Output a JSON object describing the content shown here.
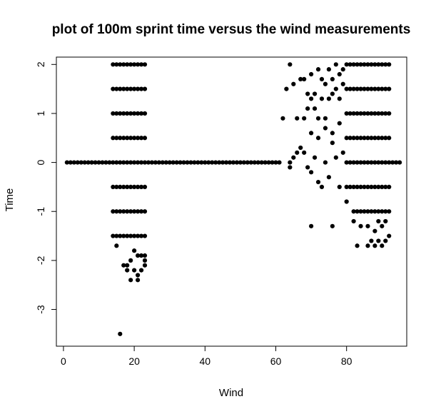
{
  "chart_data": {
    "type": "scatter",
    "title": "plot of 100m sprint time versus the wind measurements",
    "xlabel": "Wind",
    "ylabel": "Time",
    "xlim": [
      -2,
      97
    ],
    "ylim": [
      -3.75,
      2.15
    ],
    "x_ticks": [
      0,
      20,
      40,
      60,
      80
    ],
    "y_ticks": [
      -3,
      -2,
      -1,
      0,
      1,
      2
    ],
    "grid": false,
    "legend": "none",
    "marker_color": "#000000",
    "points": [
      [
        1,
        0
      ],
      [
        2,
        0
      ],
      [
        3,
        0
      ],
      [
        4,
        0
      ],
      [
        5,
        0
      ],
      [
        6,
        0
      ],
      [
        7,
        0
      ],
      [
        8,
        0
      ],
      [
        9,
        0
      ],
      [
        10,
        0
      ],
      [
        11,
        0
      ],
      [
        12,
        0
      ],
      [
        13,
        0
      ],
      [
        24,
        0
      ],
      [
        25,
        0
      ],
      [
        26,
        0
      ],
      [
        27,
        0
      ],
      [
        28,
        0
      ],
      [
        29,
        0
      ],
      [
        30,
        0
      ],
      [
        31,
        0
      ],
      [
        32,
        0
      ],
      [
        33,
        0
      ],
      [
        34,
        0
      ],
      [
        35,
        0
      ],
      [
        36,
        0
      ],
      [
        37,
        0
      ],
      [
        38,
        0
      ],
      [
        39,
        0
      ],
      [
        40,
        0
      ],
      [
        41,
        0
      ],
      [
        42,
        0
      ],
      [
        43,
        0
      ],
      [
        44,
        0
      ],
      [
        45,
        0
      ],
      [
        46,
        0
      ],
      [
        47,
        0
      ],
      [
        48,
        0
      ],
      [
        49,
        0
      ],
      [
        50,
        0
      ],
      [
        51,
        0
      ],
      [
        52,
        0
      ],
      [
        53,
        0
      ],
      [
        54,
        0
      ],
      [
        55,
        0
      ],
      [
        56,
        0
      ],
      [
        57,
        0
      ],
      [
        58,
        0
      ],
      [
        59,
        0
      ],
      [
        60,
        0
      ],
      [
        61,
        0
      ],
      [
        93,
        0
      ],
      [
        94,
        0
      ],
      [
        95,
        0
      ],
      [
        14,
        2
      ],
      [
        14,
        1.5
      ],
      [
        14,
        1
      ],
      [
        14,
        0.5
      ],
      [
        14,
        0
      ],
      [
        14,
        -0.5
      ],
      [
        14,
        -1
      ],
      [
        14,
        -1.5
      ],
      [
        15,
        2
      ],
      [
        15,
        1.5
      ],
      [
        15,
        1
      ],
      [
        15,
        0.5
      ],
      [
        15,
        0
      ],
      [
        15,
        -0.5
      ],
      [
        15,
        -1
      ],
      [
        15,
        -1.5
      ],
      [
        15,
        -1.7
      ],
      [
        16,
        2
      ],
      [
        16,
        1.5
      ],
      [
        16,
        1
      ],
      [
        16,
        0.5
      ],
      [
        16,
        0
      ],
      [
        16,
        -0.5
      ],
      [
        16,
        -1
      ],
      [
        16,
        -1.5
      ],
      [
        17,
        2
      ],
      [
        17,
        1.5
      ],
      [
        17,
        1
      ],
      [
        17,
        0.5
      ],
      [
        17,
        0
      ],
      [
        17,
        -0.5
      ],
      [
        17,
        -1
      ],
      [
        17,
        -1.5
      ],
      [
        17,
        -2.1
      ],
      [
        18,
        2
      ],
      [
        18,
        1.5
      ],
      [
        18,
        1
      ],
      [
        18,
        0.5
      ],
      [
        18,
        0
      ],
      [
        18,
        -0.5
      ],
      [
        18,
        -1
      ],
      [
        18,
        -1.5
      ],
      [
        18,
        -2.1
      ],
      [
        18,
        -2.2
      ],
      [
        19,
        2
      ],
      [
        19,
        1.5
      ],
      [
        19,
        1
      ],
      [
        19,
        0.5
      ],
      [
        19,
        0
      ],
      [
        19,
        -0.5
      ],
      [
        19,
        -1
      ],
      [
        19,
        -1.5
      ],
      [
        19,
        -2
      ],
      [
        19,
        -2.4
      ],
      [
        20,
        2
      ],
      [
        20,
        1.5
      ],
      [
        20,
        1
      ],
      [
        20,
        0.5
      ],
      [
        20,
        0
      ],
      [
        20,
        -0.5
      ],
      [
        20,
        -1
      ],
      [
        20,
        -1.5
      ],
      [
        20,
        -1.8
      ],
      [
        20,
        -2.2
      ],
      [
        21,
        2
      ],
      [
        21,
        1.5
      ],
      [
        21,
        1
      ],
      [
        21,
        0.5
      ],
      [
        21,
        0
      ],
      [
        21,
        -0.5
      ],
      [
        21,
        -1
      ],
      [
        21,
        -1.5
      ],
      [
        21,
        -1.9
      ],
      [
        21,
        -2.3
      ],
      [
        21,
        -2.4
      ],
      [
        22,
        2
      ],
      [
        22,
        1.5
      ],
      [
        22,
        1
      ],
      [
        22,
        0.5
      ],
      [
        22,
        0
      ],
      [
        22,
        -0.5
      ],
      [
        22,
        -1
      ],
      [
        22,
        -1.5
      ],
      [
        22,
        -1.9
      ],
      [
        22,
        -2.2
      ],
      [
        23,
        2
      ],
      [
        23,
        1.5
      ],
      [
        23,
        1
      ],
      [
        23,
        0.5
      ],
      [
        23,
        0
      ],
      [
        23,
        -0.5
      ],
      [
        23,
        -1
      ],
      [
        23,
        -1.5
      ],
      [
        23,
        -1.9
      ],
      [
        23,
        -2
      ],
      [
        23,
        -2.1
      ],
      [
        16,
        -3.5
      ],
      [
        62,
        0.9
      ],
      [
        63,
        1.5
      ],
      [
        64,
        2
      ],
      [
        65,
        1.6
      ],
      [
        66,
        0.9
      ],
      [
        67,
        1.7
      ],
      [
        68,
        1.7
      ],
      [
        68,
        0.9
      ],
      [
        69,
        1.4
      ],
      [
        69,
        1.1
      ],
      [
        70,
        1.8
      ],
      [
        70,
        1.3
      ],
      [
        71,
        1.4
      ],
      [
        71,
        1.1
      ],
      [
        72,
        1.9
      ],
      [
        72,
        0.9
      ],
      [
        73,
        1.7
      ],
      [
        73,
        1.3
      ],
      [
        74,
        1.6
      ],
      [
        74,
        0.9
      ],
      [
        75,
        1.9
      ],
      [
        75,
        1.3
      ],
      [
        76,
        1.7
      ],
      [
        76,
        1.4
      ],
      [
        77,
        2
      ],
      [
        77,
        1.5
      ],
      [
        78,
        1.8
      ],
      [
        78,
        1.3
      ],
      [
        79,
        1.9
      ],
      [
        79,
        1.6
      ],
      [
        64,
        0
      ],
      [
        64,
        -0.1
      ],
      [
        65,
        0.1
      ],
      [
        66,
        0.2
      ],
      [
        67,
        0.3
      ],
      [
        68,
        0.2
      ],
      [
        69,
        -0.1
      ],
      [
        70,
        -0.2
      ],
      [
        71,
        0.1
      ],
      [
        72,
        -0.4
      ],
      [
        73,
        -0.5
      ],
      [
        74,
        0
      ],
      [
        75,
        -0.3
      ],
      [
        76,
        0.6
      ],
      [
        77,
        0.1
      ],
      [
        78,
        -0.5
      ],
      [
        79,
        0.2
      ],
      [
        70,
        0.6
      ],
      [
        72,
        0.5
      ],
      [
        74,
        0.7
      ],
      [
        76,
        0.4
      ],
      [
        78,
        0.8
      ],
      [
        70,
        -1.3
      ],
      [
        76,
        -1.3
      ],
      [
        80,
        -0.8
      ],
      [
        82,
        -1.2
      ],
      [
        83,
        -1.7
      ],
      [
        80,
        2
      ],
      [
        80,
        1.5
      ],
      [
        80,
        1
      ],
      [
        80,
        0.5
      ],
      [
        80,
        0
      ],
      [
        80,
        -0.5
      ],
      [
        81,
        2
      ],
      [
        81,
        1.5
      ],
      [
        81,
        1
      ],
      [
        81,
        0.5
      ],
      [
        81,
        0
      ],
      [
        81,
        -0.5
      ],
      [
        82,
        2
      ],
      [
        82,
        1.5
      ],
      [
        82,
        1
      ],
      [
        82,
        0.5
      ],
      [
        82,
        0
      ],
      [
        82,
        -0.5
      ],
      [
        82,
        -1
      ],
      [
        83,
        2
      ],
      [
        83,
        1.5
      ],
      [
        83,
        1
      ],
      [
        83,
        0.5
      ],
      [
        83,
        0
      ],
      [
        83,
        -0.5
      ],
      [
        83,
        -1
      ],
      [
        84,
        2
      ],
      [
        84,
        1.5
      ],
      [
        84,
        1
      ],
      [
        84,
        0.5
      ],
      [
        84,
        0
      ],
      [
        84,
        -0.5
      ],
      [
        84,
        -1
      ],
      [
        84,
        -1.3
      ],
      [
        85,
        2
      ],
      [
        85,
        1.5
      ],
      [
        85,
        1
      ],
      [
        85,
        0.5
      ],
      [
        85,
        0
      ],
      [
        85,
        -0.5
      ],
      [
        85,
        -1
      ],
      [
        86,
        2
      ],
      [
        86,
        1.5
      ],
      [
        86,
        1
      ],
      [
        86,
        0.5
      ],
      [
        86,
        0
      ],
      [
        86,
        -0.5
      ],
      [
        86,
        -1
      ],
      [
        86,
        -1.3
      ],
      [
        86,
        -1.7
      ],
      [
        87,
        2
      ],
      [
        87,
        1.5
      ],
      [
        87,
        1
      ],
      [
        87,
        0.5
      ],
      [
        87,
        0
      ],
      [
        87,
        -0.5
      ],
      [
        87,
        -1
      ],
      [
        87,
        -1.6
      ],
      [
        88,
        2
      ],
      [
        88,
        1.5
      ],
      [
        88,
        1
      ],
      [
        88,
        0.5
      ],
      [
        88,
        0
      ],
      [
        88,
        -0.5
      ],
      [
        88,
        -1
      ],
      [
        88,
        -1.4
      ],
      [
        88,
        -1.7
      ],
      [
        89,
        2
      ],
      [
        89,
        1.5
      ],
      [
        89,
        1
      ],
      [
        89,
        0.5
      ],
      [
        89,
        0
      ],
      [
        89,
        -0.5
      ],
      [
        89,
        -1
      ],
      [
        89,
        -1.2
      ],
      [
        89,
        -1.6
      ],
      [
        90,
        2
      ],
      [
        90,
        1.5
      ],
      [
        90,
        1
      ],
      [
        90,
        0.5
      ],
      [
        90,
        0
      ],
      [
        90,
        -0.5
      ],
      [
        90,
        -1
      ],
      [
        90,
        -1.3
      ],
      [
        90,
        -1.7
      ],
      [
        91,
        2
      ],
      [
        91,
        1.5
      ],
      [
        91,
        1
      ],
      [
        91,
        0.5
      ],
      [
        91,
        0
      ],
      [
        91,
        -0.5
      ],
      [
        91,
        -1
      ],
      [
        91,
        -1.2
      ],
      [
        91,
        -1.6
      ],
      [
        92,
        2
      ],
      [
        92,
        1.5
      ],
      [
        92,
        1
      ],
      [
        92,
        0.5
      ],
      [
        92,
        0
      ],
      [
        92,
        -0.5
      ],
      [
        92,
        -1
      ],
      [
        92,
        -1.5
      ]
    ]
  }
}
